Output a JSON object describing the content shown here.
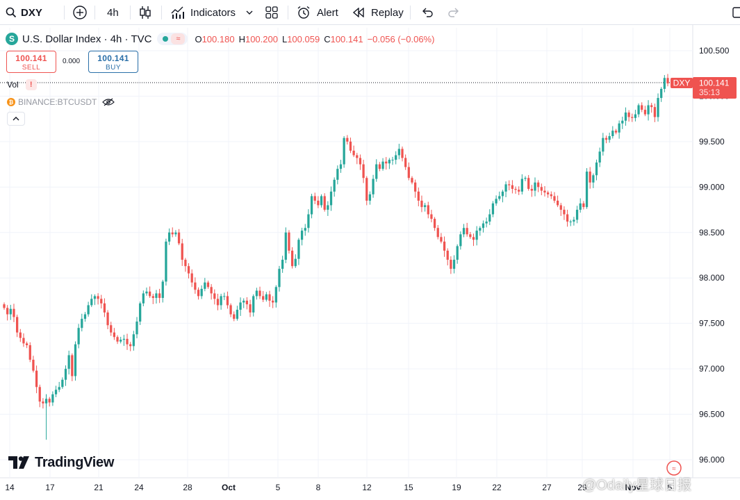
{
  "toolbar": {
    "symbol": "DXY",
    "interval": "4h",
    "indicators_label": "Indicators",
    "alert_label": "Alert",
    "replay_label": "Replay"
  },
  "header": {
    "title": "U.S. Dollar Index · 4h · TVC",
    "symbol_badge": "S",
    "open_key": "O",
    "open": "100.180",
    "high_key": "H",
    "high": "100.200",
    "low_key": "L",
    "low": "100.059",
    "close_key": "C",
    "close": "100.141",
    "change": "−0.056 (−0.06%)"
  },
  "trade": {
    "sell_price": "100.141",
    "sell_label": "SELL",
    "buy_price": "100.141",
    "buy_label": "BUY",
    "spread": "0.000"
  },
  "panes": {
    "vol_label": "Vol",
    "vol_warning": "!",
    "compare_symbol": "BINANCE:BTCUSDT",
    "compare_badge": "₿"
  },
  "brand": {
    "logo_text": "TradingView",
    "watermark": "@Odaily星球日报"
  },
  "colors": {
    "up": "#26a69a",
    "down": "#ef5350",
    "grid": "#f0f3fa",
    "axis_text": "#131722"
  },
  "chart_data": {
    "type": "candlestick",
    "title": "U.S. Dollar Index · 4h · TVC",
    "ylim": [
      96.0,
      100.55
    ],
    "y_ticks": [
      "100.500",
      "100.000",
      "99.500",
      "99.000",
      "98.500",
      "98.000",
      "97.500",
      "97.000",
      "96.500",
      "96.000"
    ],
    "x_ticks": [
      "14",
      "17",
      "21",
      "24",
      "28",
      "Oct",
      "5",
      "8",
      "12",
      "15",
      "19",
      "22",
      "27",
      "29",
      "Nov",
      "5"
    ],
    "last_price": {
      "symbol": "DXY",
      "value": "100.141",
      "countdown": "35:13"
    },
    "series": [
      {
        "name": "DXY",
        "close": [
          97.67,
          97.6,
          97.66,
          97.57,
          97.4,
          97.34,
          97.28,
          97.26,
          97.1,
          96.98,
          96.8,
          96.64,
          96.62,
          96.67,
          96.63,
          96.72,
          96.77,
          96.8,
          96.88,
          97.0,
          97.15,
          96.92,
          97.27,
          97.45,
          97.55,
          97.6,
          97.7,
          97.77,
          97.8,
          97.77,
          97.72,
          97.62,
          97.48,
          97.4,
          97.35,
          97.3,
          97.32,
          97.33,
          97.27,
          97.25,
          97.38,
          97.52,
          97.72,
          97.83,
          97.85,
          97.8,
          97.78,
          97.83,
          97.78,
          97.96,
          98.4,
          98.5,
          98.48,
          98.5,
          98.38,
          98.2,
          98.13,
          98.05,
          97.95,
          97.87,
          97.8,
          97.88,
          97.95,
          97.9,
          97.83,
          97.77,
          97.7,
          97.8,
          97.8,
          97.7,
          97.6,
          97.55,
          97.65,
          97.73,
          97.75,
          97.71,
          97.62,
          97.8,
          97.86,
          97.8,
          97.76,
          97.82,
          97.75,
          97.73,
          97.9,
          98.1,
          98.2,
          98.5,
          98.3,
          98.13,
          98.21,
          98.42,
          98.52,
          98.55,
          98.7,
          98.9,
          98.85,
          98.8,
          98.9,
          98.75,
          98.8,
          98.95,
          99.08,
          99.2,
          99.25,
          99.54,
          99.5,
          99.4,
          99.35,
          99.32,
          99.25,
          99.1,
          98.85,
          98.92,
          99.09,
          99.25,
          99.2,
          99.28,
          99.26,
          99.3,
          99.3,
          99.35,
          99.42,
          99.32,
          99.22,
          99.1,
          99.05,
          98.95,
          98.85,
          98.78,
          98.8,
          98.7,
          98.65,
          98.55,
          98.45,
          98.4,
          98.3,
          98.2,
          98.1,
          98.2,
          98.35,
          98.48,
          98.55,
          98.48,
          98.45,
          98.42,
          98.52,
          98.55,
          98.6,
          98.62,
          98.7,
          98.82,
          98.87,
          98.9,
          98.95,
          99.03,
          99.02,
          98.98,
          98.97,
          98.95,
          99.09,
          99.1,
          98.98,
          98.96,
          99.05,
          99.0,
          98.96,
          98.94,
          98.92,
          98.9,
          98.85,
          98.8,
          98.75,
          98.7,
          98.62,
          98.62,
          98.64,
          98.75,
          98.82,
          98.78,
          99.17,
          99.05,
          99.13,
          99.27,
          99.39,
          99.54,
          99.52,
          99.56,
          99.62,
          99.6,
          99.7,
          99.73,
          99.82,
          99.77,
          99.76,
          99.8,
          99.9,
          99.85,
          99.8,
          99.9,
          99.88,
          99.77,
          99.98,
          100.08,
          100.2,
          100.14
        ]
      }
    ]
  }
}
